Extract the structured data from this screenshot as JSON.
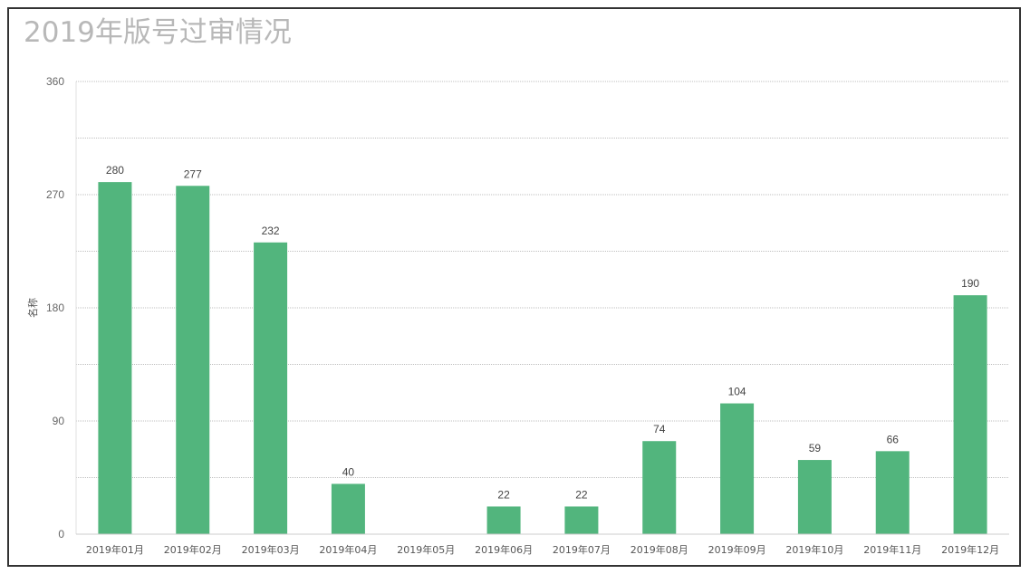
{
  "chart_data": {
    "type": "bar",
    "title": "2019年版号过审情况",
    "ylabel": "名称",
    "xlabel": "",
    "ylim": [
      0,
      360
    ],
    "yticks": [
      0,
      90,
      180,
      270,
      360
    ],
    "grid": true,
    "categories": [
      "2019年01月",
      "2019年02月",
      "2019年03月",
      "2019年04月",
      "2019年05月",
      "2019年06月",
      "2019年07月",
      "2019年08月",
      "2019年09月",
      "2019年10月",
      "2019年11月",
      "2019年12月"
    ],
    "values": [
      280,
      277,
      232,
      40,
      0,
      22,
      22,
      74,
      104,
      59,
      66,
      190
    ],
    "data_labels": [
      "280",
      "277",
      "232",
      "40",
      "",
      "22",
      "22",
      "74",
      "104",
      "59",
      "66",
      "190"
    ],
    "bar_color": "#52b57d"
  }
}
